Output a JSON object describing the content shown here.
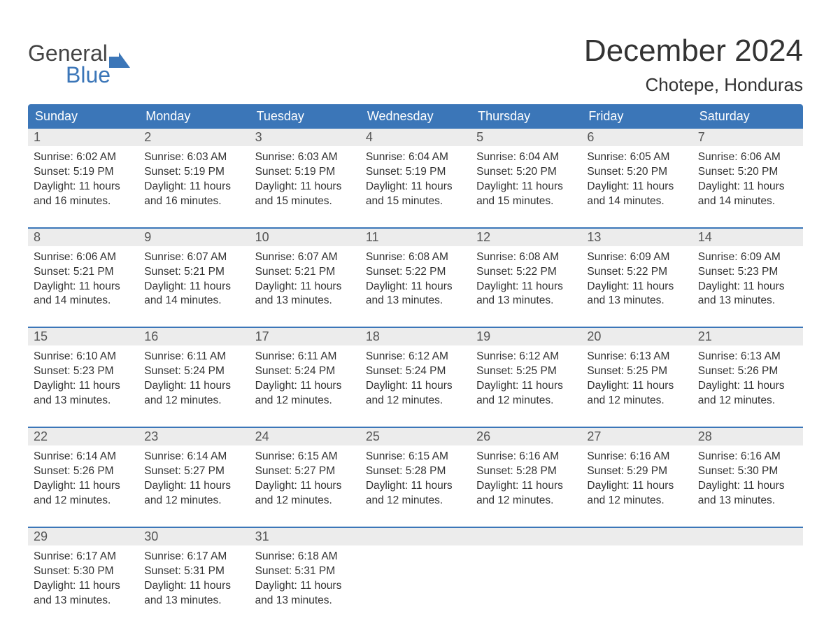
{
  "logo": {
    "line1": "General",
    "line2": "Blue",
    "brand_color": "#3b76b8",
    "text_color": "#444444"
  },
  "title": "December 2024",
  "location": "Chotepe, Honduras",
  "colors": {
    "header_bg": "#3b76b8",
    "header_text": "#ffffff",
    "daynum_bg": "#ececec",
    "daynum_text": "#555555",
    "body_text": "#333333",
    "divider": "#3b76b8",
    "page_bg": "#ffffff"
  },
  "weekdays": [
    "Sunday",
    "Monday",
    "Tuesday",
    "Wednesday",
    "Thursday",
    "Friday",
    "Saturday"
  ],
  "weeks": [
    [
      {
        "n": "1",
        "sunrise": "6:02 AM",
        "sunset": "5:19 PM",
        "daylight": "11 hours and 16 minutes."
      },
      {
        "n": "2",
        "sunrise": "6:03 AM",
        "sunset": "5:19 PM",
        "daylight": "11 hours and 16 minutes."
      },
      {
        "n": "3",
        "sunrise": "6:03 AM",
        "sunset": "5:19 PM",
        "daylight": "11 hours and 15 minutes."
      },
      {
        "n": "4",
        "sunrise": "6:04 AM",
        "sunset": "5:19 PM",
        "daylight": "11 hours and 15 minutes."
      },
      {
        "n": "5",
        "sunrise": "6:04 AM",
        "sunset": "5:20 PM",
        "daylight": "11 hours and 15 minutes."
      },
      {
        "n": "6",
        "sunrise": "6:05 AM",
        "sunset": "5:20 PM",
        "daylight": "11 hours and 14 minutes."
      },
      {
        "n": "7",
        "sunrise": "6:06 AM",
        "sunset": "5:20 PM",
        "daylight": "11 hours and 14 minutes."
      }
    ],
    [
      {
        "n": "8",
        "sunrise": "6:06 AM",
        "sunset": "5:21 PM",
        "daylight": "11 hours and 14 minutes."
      },
      {
        "n": "9",
        "sunrise": "6:07 AM",
        "sunset": "5:21 PM",
        "daylight": "11 hours and 14 minutes."
      },
      {
        "n": "10",
        "sunrise": "6:07 AM",
        "sunset": "5:21 PM",
        "daylight": "11 hours and 13 minutes."
      },
      {
        "n": "11",
        "sunrise": "6:08 AM",
        "sunset": "5:22 PM",
        "daylight": "11 hours and 13 minutes."
      },
      {
        "n": "12",
        "sunrise": "6:08 AM",
        "sunset": "5:22 PM",
        "daylight": "11 hours and 13 minutes."
      },
      {
        "n": "13",
        "sunrise": "6:09 AM",
        "sunset": "5:22 PM",
        "daylight": "11 hours and 13 minutes."
      },
      {
        "n": "14",
        "sunrise": "6:09 AM",
        "sunset": "5:23 PM",
        "daylight": "11 hours and 13 minutes."
      }
    ],
    [
      {
        "n": "15",
        "sunrise": "6:10 AM",
        "sunset": "5:23 PM",
        "daylight": "11 hours and 13 minutes."
      },
      {
        "n": "16",
        "sunrise": "6:11 AM",
        "sunset": "5:24 PM",
        "daylight": "11 hours and 12 minutes."
      },
      {
        "n": "17",
        "sunrise": "6:11 AM",
        "sunset": "5:24 PM",
        "daylight": "11 hours and 12 minutes."
      },
      {
        "n": "18",
        "sunrise": "6:12 AM",
        "sunset": "5:24 PM",
        "daylight": "11 hours and 12 minutes."
      },
      {
        "n": "19",
        "sunrise": "6:12 AM",
        "sunset": "5:25 PM",
        "daylight": "11 hours and 12 minutes."
      },
      {
        "n": "20",
        "sunrise": "6:13 AM",
        "sunset": "5:25 PM",
        "daylight": "11 hours and 12 minutes."
      },
      {
        "n": "21",
        "sunrise": "6:13 AM",
        "sunset": "5:26 PM",
        "daylight": "11 hours and 12 minutes."
      }
    ],
    [
      {
        "n": "22",
        "sunrise": "6:14 AM",
        "sunset": "5:26 PM",
        "daylight": "11 hours and 12 minutes."
      },
      {
        "n": "23",
        "sunrise": "6:14 AM",
        "sunset": "5:27 PM",
        "daylight": "11 hours and 12 minutes."
      },
      {
        "n": "24",
        "sunrise": "6:15 AM",
        "sunset": "5:27 PM",
        "daylight": "11 hours and 12 minutes."
      },
      {
        "n": "25",
        "sunrise": "6:15 AM",
        "sunset": "5:28 PM",
        "daylight": "11 hours and 12 minutes."
      },
      {
        "n": "26",
        "sunrise": "6:16 AM",
        "sunset": "5:28 PM",
        "daylight": "11 hours and 12 minutes."
      },
      {
        "n": "27",
        "sunrise": "6:16 AM",
        "sunset": "5:29 PM",
        "daylight": "11 hours and 12 minutes."
      },
      {
        "n": "28",
        "sunrise": "6:16 AM",
        "sunset": "5:30 PM",
        "daylight": "11 hours and 13 minutes."
      }
    ],
    [
      {
        "n": "29",
        "sunrise": "6:17 AM",
        "sunset": "5:30 PM",
        "daylight": "11 hours and 13 minutes."
      },
      {
        "n": "30",
        "sunrise": "6:17 AM",
        "sunset": "5:31 PM",
        "daylight": "11 hours and 13 minutes."
      },
      {
        "n": "31",
        "sunrise": "6:18 AM",
        "sunset": "5:31 PM",
        "daylight": "11 hours and 13 minutes."
      },
      null,
      null,
      null,
      null
    ]
  ],
  "labels": {
    "sunrise": "Sunrise:",
    "sunset": "Sunset:",
    "daylight": "Daylight:"
  }
}
